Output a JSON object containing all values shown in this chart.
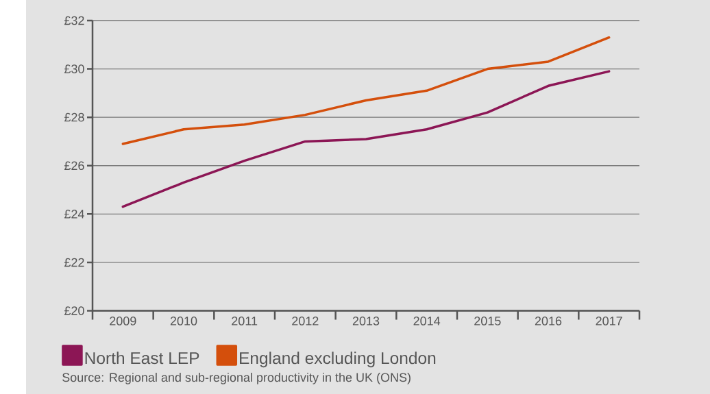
{
  "chart_data": {
    "type": "line",
    "categories": [
      "2009",
      "2010",
      "2011",
      "2012",
      "2013",
      "2014",
      "2015",
      "2016",
      "2017"
    ],
    "series": [
      {
        "name": "North East LEP",
        "color": "#8c1655",
        "values": [
          24.3,
          25.3,
          26.2,
          27.0,
          27.1,
          27.5,
          28.2,
          29.3,
          29.9
        ]
      },
      {
        "name": "England excluding London",
        "color": "#d44f0c",
        "values": [
          26.9,
          27.5,
          27.7,
          28.1,
          28.7,
          29.1,
          30.0,
          30.3,
          31.3
        ]
      }
    ],
    "ylim": [
      20,
      32
    ],
    "yticks": [
      {
        "value": 20,
        "label": "£20"
      },
      {
        "value": 22,
        "label": "£22"
      },
      {
        "value": 24,
        "label": "£24"
      },
      {
        "value": 26,
        "label": "£26"
      },
      {
        "value": 28,
        "label": "£28"
      },
      {
        "value": 30,
        "label": "£30"
      },
      {
        "value": 32,
        "label": "£32"
      }
    ],
    "grid": "y",
    "legend": "bottom",
    "annotations": [
      "Source: Regional and sub-regional productivity in the UK (ONS)"
    ]
  }
}
